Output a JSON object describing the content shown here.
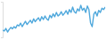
{
  "chart_data": {
    "type": "line",
    "color": "#4fa8dc",
    "tick_labels": false,
    "grid": false,
    "ylim": [
      0,
      100
    ],
    "yticks": [],
    "values": [
      20,
      18,
      25,
      15,
      22,
      28,
      24,
      30,
      26,
      35,
      32,
      40,
      30,
      38,
      45,
      36,
      42,
      48,
      40,
      52,
      44,
      50,
      55,
      46,
      58,
      50,
      60,
      52,
      48,
      62,
      55,
      66,
      58,
      70,
      60,
      64,
      72,
      62,
      68,
      75,
      65,
      78,
      70,
      85,
      72,
      68,
      80,
      74,
      90,
      76,
      82,
      70,
      88,
      78,
      40,
      30,
      65,
      72,
      60,
      76,
      70,
      82,
      78,
      85
    ]
  }
}
